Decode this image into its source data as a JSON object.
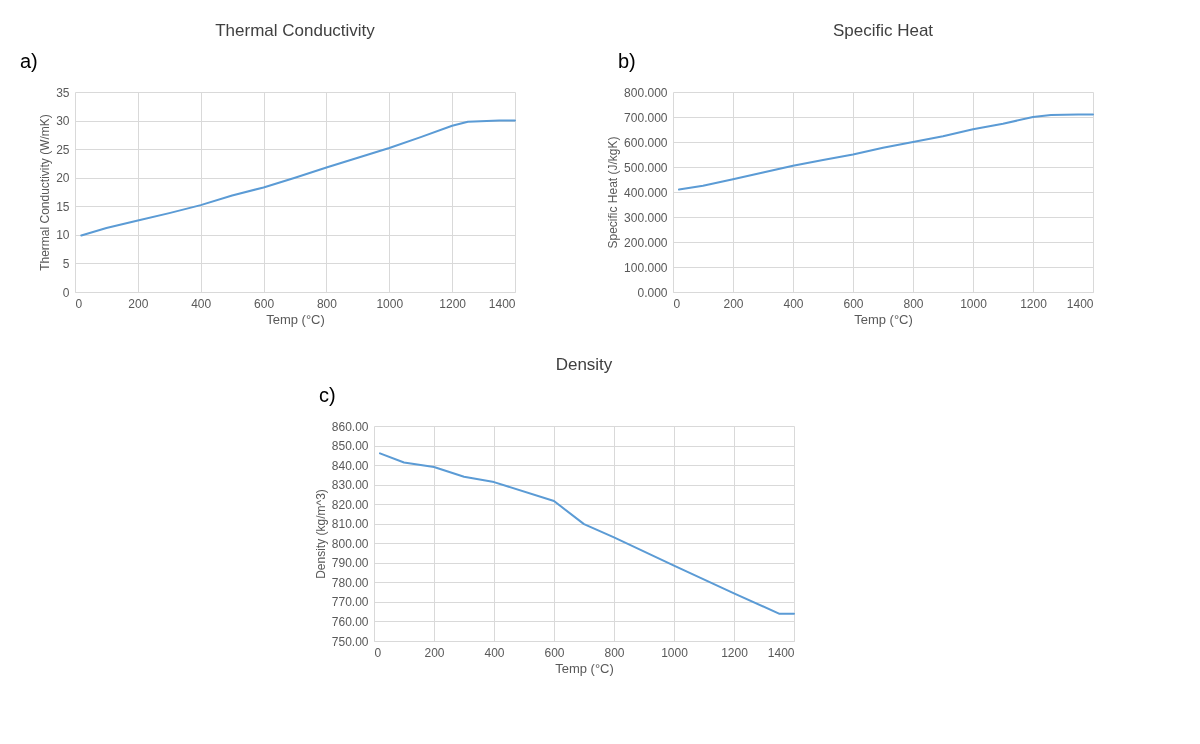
{
  "chart_data": [
    {
      "type": "line",
      "title": "Thermal Conductivity",
      "xlabel": "Temp (°C)",
      "ylabel": "Thermal Conductivity (W/mK)",
      "annotations": [
        "a)"
      ],
      "x": [
        20,
        100,
        200,
        300,
        400,
        500,
        600,
        700,
        800,
        900,
        1000,
        1100,
        1200,
        1250,
        1350,
        1400
      ],
      "series": [
        {
          "color": "#5b9bd5",
          "values": [
            9.9,
            11.2,
            12.5,
            13.8,
            15.2,
            16.9,
            18.3,
            20.0,
            21.8,
            23.5,
            25.2,
            27.1,
            29.1,
            29.8,
            30.0,
            30.0
          ]
        }
      ],
      "xlim": [
        0,
        1400
      ],
      "xticks": [
        0,
        200,
        400,
        600,
        800,
        1000,
        1200,
        1400
      ],
      "ylim": [
        0,
        35
      ],
      "yticks": [
        0,
        5,
        10,
        15,
        20,
        25,
        30,
        35
      ],
      "grid": true
    },
    {
      "type": "line",
      "title": "Specific Heat",
      "xlabel": "Temp (°C)",
      "ylabel": "Specific Heat (J/kgK)",
      "annotations": [
        "b)"
      ],
      "x": [
        20,
        100,
        200,
        300,
        400,
        500,
        600,
        700,
        800,
        900,
        1000,
        1100,
        1200,
        1260,
        1350,
        1400
      ],
      "series": [
        {
          "color": "#5b9bd5",
          "values": [
            410,
            425,
            451,
            478,
            505,
            528,
            550,
            577,
            600,
            623,
            651,
            673,
            700,
            708,
            710,
            710
          ]
        }
      ],
      "xlim": [
        0,
        1400
      ],
      "xticks": [
        0,
        200,
        400,
        600,
        800,
        1000,
        1200,
        1400
      ],
      "ylim": [
        0,
        800
      ],
      "yticks": [
        {
          "value": 0,
          "label": "0.000"
        },
        {
          "value": 100,
          "label": "100.000"
        },
        {
          "value": 200,
          "label": "200.000"
        },
        {
          "value": 300,
          "label": "300.000"
        },
        {
          "value": 400,
          "label": "400.000"
        },
        {
          "value": 500,
          "label": "500.000"
        },
        {
          "value": 600,
          "label": "600.000"
        },
        {
          "value": 700,
          "label": "700.000"
        },
        {
          "value": 800,
          "label": "800.000"
        }
      ],
      "grid": true
    },
    {
      "type": "line",
      "title": "Density",
      "xlabel": "Temp (°C)",
      "ylabel": "Density (kg/m^3)",
      "annotations": [
        "c)"
      ],
      "x": [
        20,
        100,
        200,
        300,
        400,
        600,
        700,
        800,
        1000,
        1200,
        1350,
        1400
      ],
      "series": [
        {
          "color": "#5b9bd5",
          "values": [
            846,
            841.3,
            839,
            834,
            831.3,
            821.6,
            809.8,
            803,
            788.6,
            774.4,
            764,
            764
          ]
        }
      ],
      "xlim": [
        0,
        1400
      ],
      "xticks": [
        0,
        200,
        400,
        600,
        800,
        1000,
        1200,
        1400
      ],
      "ylim": [
        750,
        860
      ],
      "yticks": [
        {
          "value": 750,
          "label": "750.00"
        },
        {
          "value": 760,
          "label": "760.00"
        },
        {
          "value": 770,
          "label": "770.00"
        },
        {
          "value": 780,
          "label": "780.00"
        },
        {
          "value": 790,
          "label": "790.00"
        },
        {
          "value": 800,
          "label": "800.00"
        },
        {
          "value": 810,
          "label": "810.00"
        },
        {
          "value": 820,
          "label": "820.00"
        },
        {
          "value": 830,
          "label": "830.00"
        },
        {
          "value": 840,
          "label": "840.00"
        },
        {
          "value": 850,
          "label": "850.00"
        },
        {
          "value": 860,
          "label": "860.00"
        }
      ],
      "grid": true
    }
  ]
}
